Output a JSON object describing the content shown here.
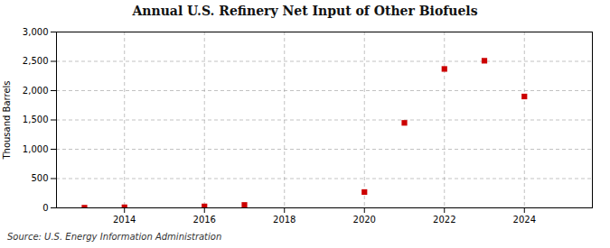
{
  "chart_data": {
    "type": "scatter",
    "title": "Annual U.S. Refinery Net Input of Other Biofuels",
    "ylabel": "Thousand Barrels",
    "annotations": [
      "Source: U.S. Energy Information Administration"
    ],
    "x": [
      2013,
      2014,
      2016,
      2017,
      2020,
      2021,
      2022,
      2023,
      2024
    ],
    "values": [
      3,
      10,
      25,
      50,
      270,
      1450,
      2370,
      2510,
      1900
    ],
    "color": "#cc0000",
    "marker": "square",
    "xlim": [
      2012.3,
      2025.7
    ],
    "xticks": [
      2014,
      2016,
      2018,
      2020,
      2022,
      2024
    ],
    "ylim": [
      0,
      3000
    ],
    "yticks": [
      0,
      500,
      {
        "value": 1000,
        "label": "1,000"
      },
      {
        "value": 1500,
        "label": "1,500"
      },
      {
        "value": 2000,
        "label": "2,000"
      },
      {
        "value": 2500,
        "label": "2,500"
      },
      {
        "value": 3000,
        "label": "3,000"
      }
    ],
    "grid": true
  }
}
